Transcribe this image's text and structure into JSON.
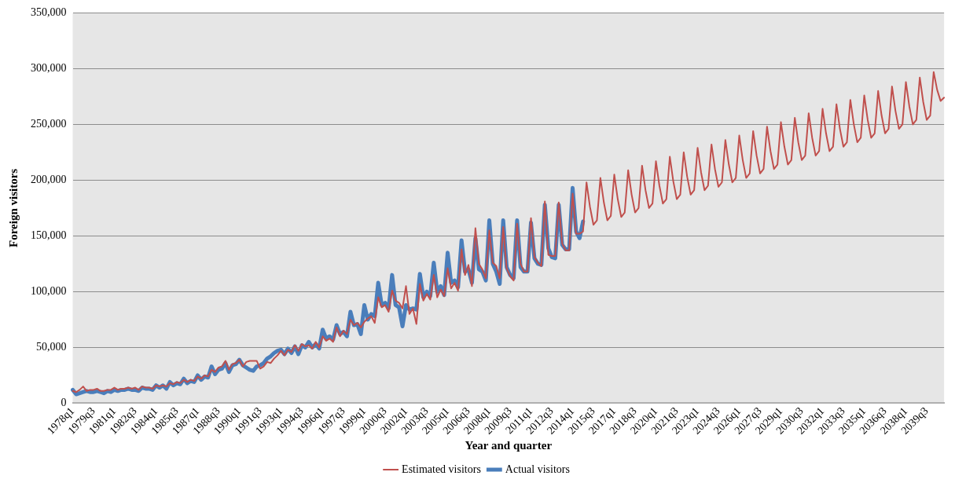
{
  "chart_data": {
    "type": "line",
    "xlabel": "Year and quarter",
    "ylabel": "Foreign visitors",
    "categories": [
      "1978q1",
      null,
      null,
      null,
      null,
      null,
      "1979q3",
      null,
      null,
      null,
      null,
      null,
      "1981q1",
      null,
      null,
      null,
      null,
      null,
      "1982q3",
      null,
      null,
      null,
      null,
      null,
      "1984q1",
      null,
      null,
      null,
      null,
      null,
      "1985q3",
      null,
      null,
      null,
      null,
      null,
      "1987q1",
      null,
      null,
      null,
      null,
      null,
      "1988q3",
      null,
      null,
      null,
      null,
      null,
      "1990q1",
      null,
      null,
      null,
      null,
      null,
      "1991q3",
      null,
      null,
      null,
      null,
      null,
      "1993q1",
      null,
      null,
      null,
      null,
      null,
      "1994q3",
      null,
      null,
      null,
      null,
      null,
      "1996q1",
      null,
      null,
      null,
      null,
      null,
      "1997q3",
      null,
      null,
      null,
      null,
      null,
      "1999q1",
      null,
      null,
      null,
      null,
      null,
      "2000q3",
      null,
      null,
      null,
      null,
      null,
      "2002q1",
      null,
      null,
      null,
      null,
      null,
      "2003q3",
      null,
      null,
      null,
      null,
      null,
      "2005q1",
      null,
      null,
      null,
      null,
      null,
      "2006q3",
      null,
      null,
      null,
      null,
      null,
      "2008q1",
      null,
      null,
      null,
      null,
      null,
      "2009q3",
      null,
      null,
      null,
      null,
      null,
      "2011q1",
      null,
      null,
      null,
      null,
      null,
      "2012q3",
      null,
      null,
      null,
      null,
      null,
      "2014q1",
      null,
      null,
      null,
      null,
      null,
      "2015q3",
      null,
      null,
      null,
      null,
      null,
      "2017q1",
      null,
      null,
      null,
      null,
      null,
      "2018q3",
      null,
      null,
      null,
      null,
      null,
      "2020q1",
      null,
      null,
      null,
      null,
      null,
      "2021q3",
      null,
      null,
      null,
      null,
      null,
      "2023q1",
      null,
      null,
      null,
      null,
      null,
      "2024q3",
      null,
      null,
      null,
      null,
      null,
      "2026q1",
      null,
      null,
      null,
      null,
      null,
      "2027q3",
      null,
      null,
      null,
      null,
      null,
      "2029q1",
      null,
      null,
      null,
      null,
      null,
      "2030q3",
      null,
      null,
      null,
      null,
      null,
      "2032q1",
      null,
      null,
      null,
      null,
      null,
      "2033q3",
      null,
      null,
      null,
      null,
      null,
      "2035q1",
      null,
      null,
      null,
      null,
      null,
      "2036q3",
      null,
      null,
      null,
      null,
      null,
      "2038q1",
      null,
      null,
      null,
      null,
      null,
      "2039q3",
      null,
      null,
      null,
      null,
      null
    ],
    "series": [
      {
        "name": "Actual visitors",
        "color": "#4a7ebb",
        "values": [
          12000,
          8000,
          9000,
          10000,
          11000,
          10000,
          10000,
          11000,
          10000,
          9000,
          11000,
          10000,
          12000,
          11000,
          12000,
          12000,
          13000,
          12000,
          12000,
          11000,
          14000,
          13000,
          13000,
          12000,
          16000,
          14000,
          16000,
          13000,
          19000,
          16000,
          18000,
          17000,
          22000,
          18000,
          20000,
          19000,
          25000,
          21000,
          24000,
          23000,
          33000,
          26000,
          30000,
          31000,
          36000,
          28000,
          34000,
          35000,
          39000,
          34000,
          32000,
          30000,
          29000,
          33000,
          34000,
          36000,
          40000,
          42000,
          45000,
          47000,
          48000,
          44000,
          49000,
          45000,
          51000,
          44000,
          52000,
          50000,
          55000,
          50000,
          53000,
          49000,
          66000,
          58000,
          60000,
          57000,
          70000,
          62000,
          64000,
          60000,
          82000,
          70000,
          71000,
          62000,
          88000,
          75000,
          80000,
          78000,
          108000,
          88000,
          90000,
          85000,
          115000,
          88000,
          86000,
          69000,
          88000,
          84000,
          85000,
          84000,
          116000,
          95000,
          100000,
          96000,
          126000,
          100000,
          105000,
          97000,
          135000,
          108000,
          110000,
          104000,
          146000,
          118000,
          120000,
          108000,
          148000,
          120000,
          118000,
          110000,
          164000,
          125000,
          118000,
          107000,
          164000,
          122000,
          115000,
          112000,
          164000,
          122000,
          118000,
          118000,
          162000,
          130000,
          125000,
          124000,
          178000,
          139000,
          131000,
          130000,
          178000,
          142000,
          138000,
          138000,
          193000,
          154000,
          148000,
          163000,
          null,
          null,
          null,
          null,
          null,
          null,
          null,
          null,
          null,
          null,
          null,
          null,
          null,
          null,
          null,
          null,
          null,
          null,
          null,
          null,
          null,
          null,
          null,
          null,
          null,
          null,
          null,
          null,
          null,
          null,
          null,
          null,
          null,
          null,
          null,
          null,
          null,
          null,
          null,
          null,
          null,
          null,
          null,
          null,
          null,
          null,
          null,
          null,
          null,
          null,
          null,
          null,
          null,
          null,
          null,
          null,
          null,
          null,
          null,
          null,
          null,
          null,
          null,
          null,
          null,
          null,
          null,
          null,
          null,
          null,
          null,
          null,
          null,
          null,
          null,
          null,
          null,
          null,
          null,
          null,
          null,
          null,
          null,
          null,
          null,
          null,
          null,
          null,
          null,
          null,
          null,
          null,
          null,
          null,
          null,
          null,
          null,
          null,
          null,
          null,
          null,
          null,
          null,
          null
        ]
      },
      {
        "name": "Estimated visitors",
        "color": "#c0504d",
        "values": [
          11000,
          10000,
          12000,
          15000,
          11000,
          12000,
          12000,
          13000,
          11000,
          11000,
          12000,
          12000,
          14000,
          12000,
          13000,
          13000,
          14000,
          13000,
          14000,
          12000,
          15000,
          14000,
          14000,
          13000,
          16000,
          15000,
          16000,
          15000,
          18000,
          17000,
          19000,
          18000,
          21000,
          19000,
          21000,
          20000,
          24000,
          22000,
          25000,
          24000,
          30000,
          28000,
          32000,
          33000,
          38000,
          30000,
          35000,
          36000,
          39000,
          33000,
          37000,
          38000,
          38000,
          38000,
          31000,
          33000,
          37000,
          36000,
          40000,
          43000,
          47000,
          43000,
          48000,
          46000,
          52000,
          47000,
          53000,
          51000,
          52000,
          49000,
          55000,
          50000,
          60000,
          56000,
          58000,
          55000,
          68000,
          60000,
          65000,
          62000,
          75000,
          70000,
          72000,
          68000,
          73000,
          76000,
          78000,
          72000,
          95000,
          86000,
          88000,
          82000,
          101000,
          92000,
          90000,
          85000,
          105000,
          80000,
          85000,
          71000,
          107000,
          92000,
          98000,
          93000,
          115000,
          95000,
          102000,
          96000,
          121000,
          103000,
          108000,
          101000,
          138000,
          115000,
          124000,
          105000,
          157000,
          125000,
          120000,
          112000,
          155000,
          126000,
          123000,
          112000,
          158000,
          121000,
          114000,
          110000,
          161000,
          125000,
          118000,
          118000,
          166000,
          131000,
          126000,
          123000,
          181000,
          133000,
          132000,
          132000,
          180000,
          143000,
          137000,
          137000,
          188000,
          152000,
          152000,
          154000,
          198000,
          176000,
          160000,
          164000,
          202000,
          180000,
          164000,
          168000,
          205000,
          183000,
          167000,
          171000,
          209000,
          187000,
          171000,
          175000,
          213000,
          191000,
          175000,
          179000,
          217000,
          195000,
          179000,
          183000,
          221000,
          199000,
          183000,
          187000,
          225000,
          203000,
          187000,
          191000,
          229000,
          207000,
          191000,
          195000,
          232000,
          210000,
          194000,
          198000,
          236000,
          214000,
          198000,
          202000,
          240000,
          218000,
          202000,
          206000,
          244000,
          222000,
          206000,
          210000,
          248000,
          226000,
          210000,
          214000,
          252000,
          230000,
          214000,
          218000,
          256000,
          234000,
          218000,
          222000,
          260000,
          238000,
          222000,
          226000,
          264000,
          242000,
          226000,
          230000,
          268000,
          246000,
          230000,
          234000,
          272000,
          250000,
          234000,
          238000,
          276000,
          254000,
          238000,
          242000,
          280000,
          258000,
          242000,
          246000,
          284000,
          262000,
          246000,
          250000,
          288000,
          266000,
          250000,
          254000,
          292000,
          270000,
          254000,
          258000,
          297000,
          281000,
          271000,
          274000
        ]
      }
    ],
    "ylim": [
      0,
      350000
    ],
    "yticks": [
      0,
      {
        "value": 50000,
        "label": "50,000"
      },
      {
        "value": 100000,
        "label": "100,000"
      },
      {
        "value": 150000,
        "label": "150,000"
      },
      {
        "value": 200000,
        "label": "200,000"
      },
      {
        "value": 250000,
        "label": "250,000"
      },
      {
        "value": 300000,
        "label": "300,000"
      },
      {
        "value": 350000,
        "label": "350,000"
      }
    ],
    "grid": "y",
    "legend": "bottom",
    "marker": "none",
    "line_style": "solid"
  }
}
